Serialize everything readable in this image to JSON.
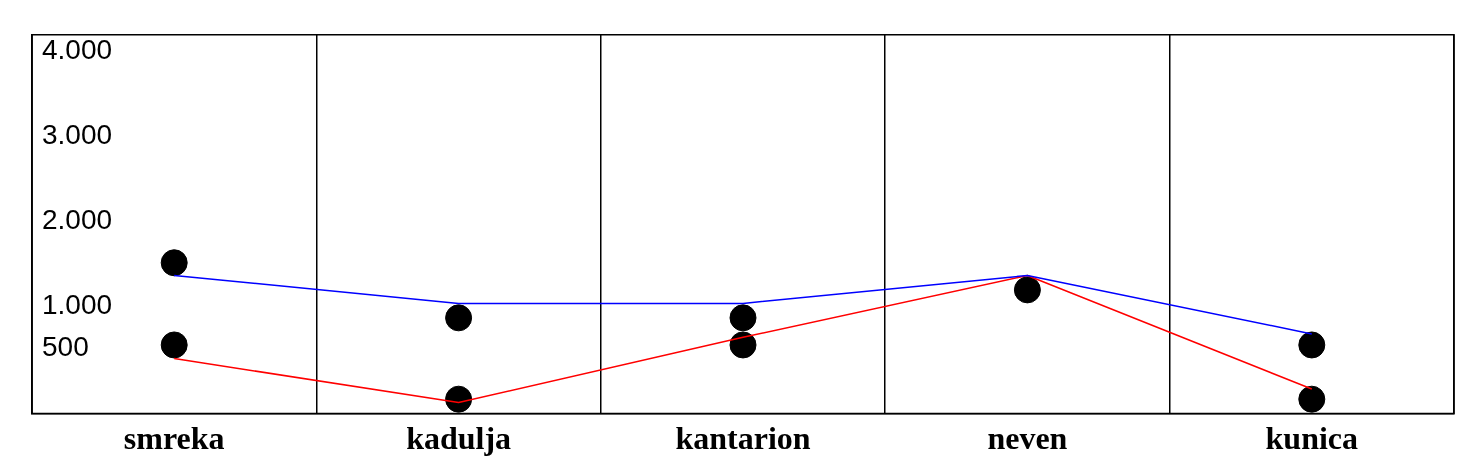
{
  "chart_data": {
    "type": "line",
    "categories": [
      "smreka",
      "kadulja",
      "kantarion",
      "neven",
      "kunica"
    ],
    "series": [
      {
        "type": "line",
        "color": "#0000ff",
        "values": [
          1360,
          1030,
          1030,
          1360,
          670
        ],
        "marker": "none"
      },
      {
        "type": "line",
        "color": "#ff0000",
        "values": [
          380,
          -140,
          630,
          1360,
          20
        ],
        "marker": "none"
      },
      {
        "type": "scatter",
        "color": "#000000",
        "values": [
          1510,
          860,
          860,
          1190,
          540
        ],
        "marker": "circle"
      },
      {
        "type": "scatter",
        "color": "#000000",
        "values": [
          540,
          -100,
          540,
          null,
          -100
        ],
        "marker": "circle"
      }
    ],
    "ylim": [
      -270,
      4200
    ],
    "yticks": [
      {
        "value": 4000,
        "label": "4.000"
      },
      {
        "value": 3000,
        "label": "3.000"
      },
      {
        "value": 2000,
        "label": "2.000"
      },
      {
        "value": 1000,
        "label": "1.000"
      },
      500
    ],
    "grid": "x",
    "legend": false
  }
}
